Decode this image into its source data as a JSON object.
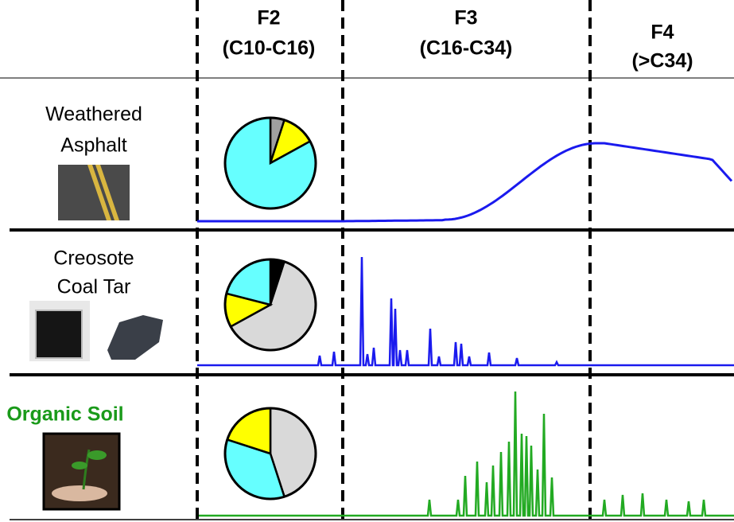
{
  "header": {
    "columns": [
      {
        "lines": [
          "F2",
          "(C10-C16)"
        ]
      },
      {
        "lines": [
          "F3",
          "(C16-C34)"
        ]
      },
      {
        "lines": [
          "F4",
          "(>C34)"
        ]
      }
    ]
  },
  "rows": [
    {
      "lines": [
        "Weathered",
        "Asphalt"
      ],
      "pie": {
        "values": [
          5,
          12,
          83
        ],
        "colors": [
          "#a0a0a0",
          "#ffff00",
          "#66ffff"
        ]
      }
    },
    {
      "lines": [
        "Creosote",
        "Coal Tar"
      ],
      "pie": {
        "values": [
          5,
          62,
          12,
          21
        ],
        "colors": [
          "#000000",
          "#d9d9d9",
          "#ffff00",
          "#66ffff"
        ]
      }
    },
    {
      "lines": [
        "Organic Soil"
      ],
      "pie": {
        "values": [
          45,
          35,
          20
        ],
        "colors": [
          "#d9d9d9",
          "#66ffff",
          "#ffff00"
        ]
      }
    }
  ]
}
